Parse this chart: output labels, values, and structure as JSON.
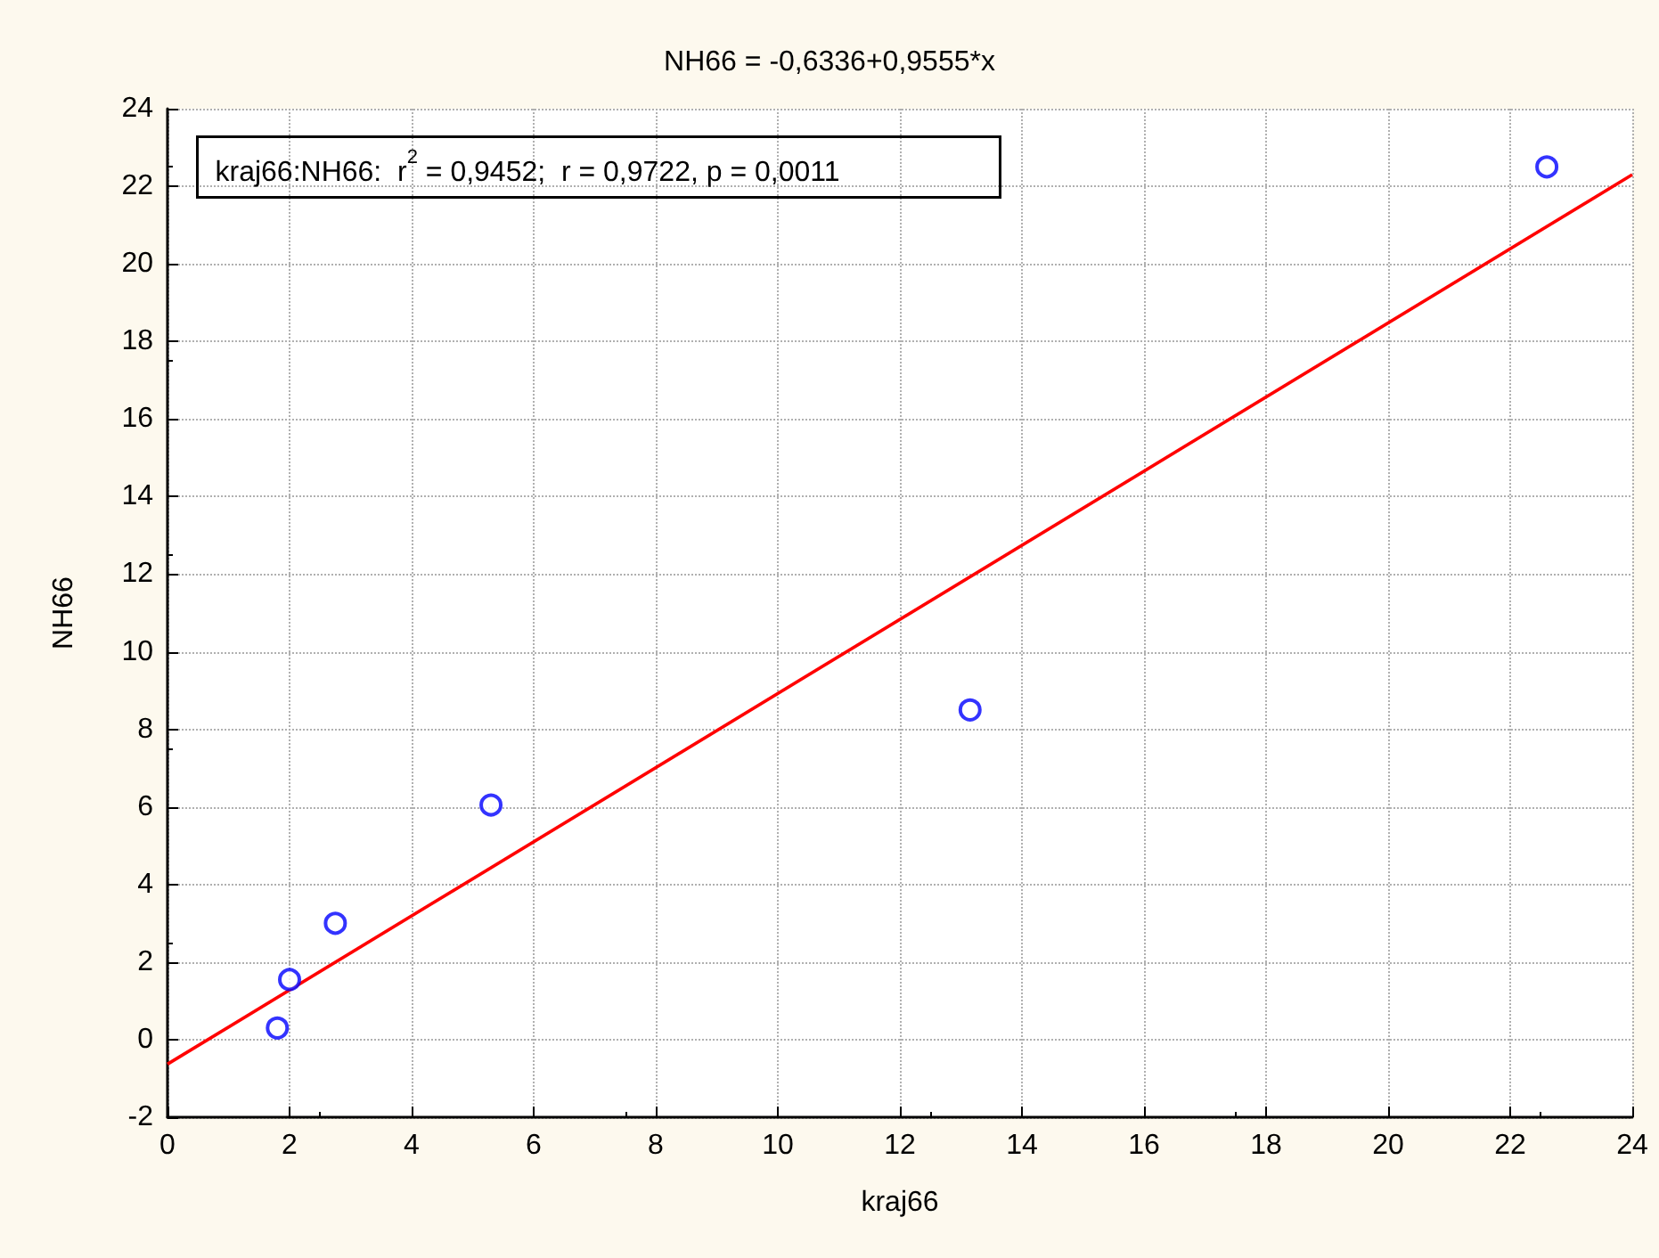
{
  "chart_data": {
    "type": "scatter",
    "title": "NH66 = -0,6336+0,9555*x",
    "xlabel": "kraj66",
    "ylabel": "NH66",
    "annotations": [
      "kraj66:NH66:  r$^{2}$ = 0,9452;  r = 0,9722, p = 0,0011"
    ],
    "series": [
      {
        "color": "#0000ff",
        "x": [
          1.8,
          2.0,
          2.75,
          5.3,
          13.15,
          22.6
        ],
        "values": [
          0.3,
          1.55,
          3.0,
          6.05,
          8.5,
          22.5
        ]
      },
      {
        "type": "line",
        "color": "#ff0000",
        "marker": "none",
        "x": [
          0,
          24
        ],
        "values": [
          -0.63,
          22.3
        ]
      }
    ],
    "xlim": [
      0,
      24
    ],
    "xticks": [
      0,
      2,
      4,
      6,
      8,
      10,
      12,
      14,
      16,
      18,
      20,
      22,
      24
    ],
    "ylim": [
      -2,
      24
    ],
    "yticks": [
      -2,
      0,
      2,
      4,
      6,
      8,
      10,
      12,
      14,
      16,
      18,
      20,
      22,
      24
    ],
    "grid": true,
    "marker": "circle"
  }
}
